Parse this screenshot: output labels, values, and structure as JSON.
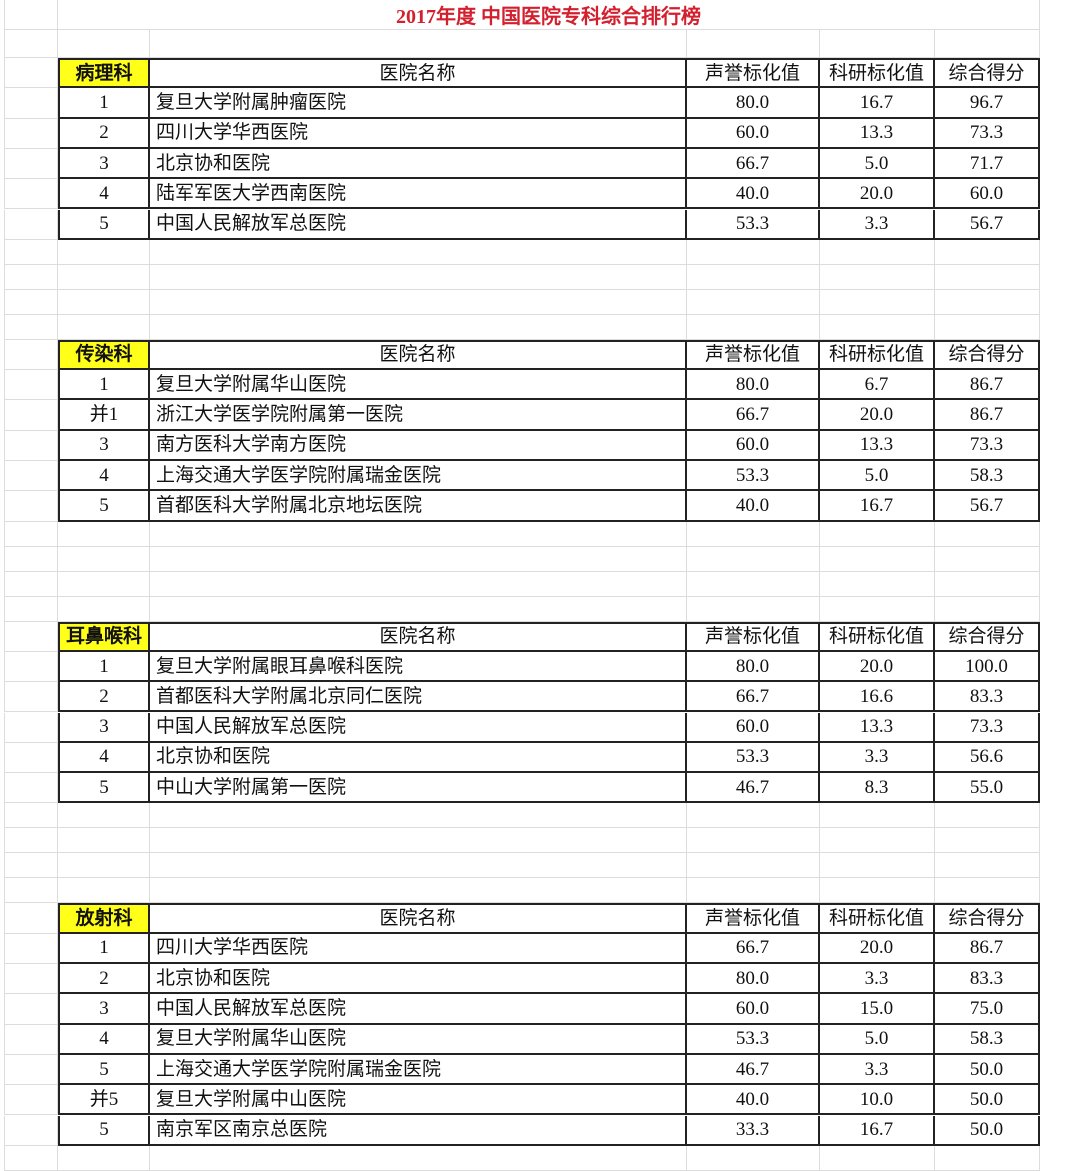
{
  "title": "2017年度 中国医院专科综合排行榜",
  "columns": {
    "name": "医院名称",
    "reputation": "声誉标化值",
    "research": "科研标化值",
    "total": "综合得分"
  },
  "header_color": "#ffff1a",
  "title_color": "#d3202f",
  "sections": [
    {
      "dept": "病理科",
      "rows": [
        [
          "1",
          "复旦大学附属肿瘤医院",
          "80.0",
          "16.7",
          "96.7"
        ],
        [
          "2",
          "四川大学华西医院",
          "60.0",
          "13.3",
          "73.3"
        ],
        [
          "3",
          "北京协和医院",
          "66.7",
          "5.0",
          "71.7"
        ],
        [
          "4",
          "陆军军医大学西南医院",
          "40.0",
          "20.0",
          "60.0"
        ],
        [
          "5",
          "中国人民解放军总医院",
          "53.3",
          "3.3",
          "56.7"
        ]
      ]
    },
    {
      "dept": "传染科",
      "rows": [
        [
          "1",
          "复旦大学附属华山医院",
          "80.0",
          "6.7",
          "86.7"
        ],
        [
          "并1",
          "浙江大学医学院附属第一医院",
          "66.7",
          "20.0",
          "86.7"
        ],
        [
          "3",
          "南方医科大学南方医院",
          "60.0",
          "13.3",
          "73.3"
        ],
        [
          "4",
          "上海交通大学医学院附属瑞金医院",
          "53.3",
          "5.0",
          "58.3"
        ],
        [
          "5",
          "首都医科大学附属北京地坛医院",
          "40.0",
          "16.7",
          "56.7"
        ]
      ]
    },
    {
      "dept": "耳鼻喉科",
      "rows": [
        [
          "1",
          "复旦大学附属眼耳鼻喉科医院",
          "80.0",
          "20.0",
          "100.0"
        ],
        [
          "2",
          "首都医科大学附属北京同仁医院",
          "66.7",
          "16.6",
          "83.3"
        ],
        [
          "3",
          "中国人民解放军总医院",
          "60.0",
          "13.3",
          "73.3"
        ],
        [
          "4",
          "北京协和医院",
          "53.3",
          "3.3",
          "56.6"
        ],
        [
          "5",
          "中山大学附属第一医院",
          "46.7",
          "8.3",
          "55.0"
        ]
      ]
    },
    {
      "dept": "放射科",
      "rows": [
        [
          "1",
          "四川大学华西医院",
          "66.7",
          "20.0",
          "86.7"
        ],
        [
          "2",
          "北京协和医院",
          "80.0",
          "3.3",
          "83.3"
        ],
        [
          "3",
          "中国人民解放军总医院",
          "60.0",
          "15.0",
          "75.0"
        ],
        [
          "4",
          "复旦大学附属华山医院",
          "53.3",
          "5.0",
          "58.3"
        ],
        [
          "5",
          "上海交通大学医学院附属瑞金医院",
          "46.7",
          "3.3",
          "50.0"
        ],
        [
          "并5",
          "复旦大学附属中山医院",
          "40.0",
          "10.0",
          "50.0"
        ],
        [
          "5",
          "南京军区南京总医院",
          "33.3",
          "16.7",
          "50.0"
        ]
      ]
    }
  ]
}
